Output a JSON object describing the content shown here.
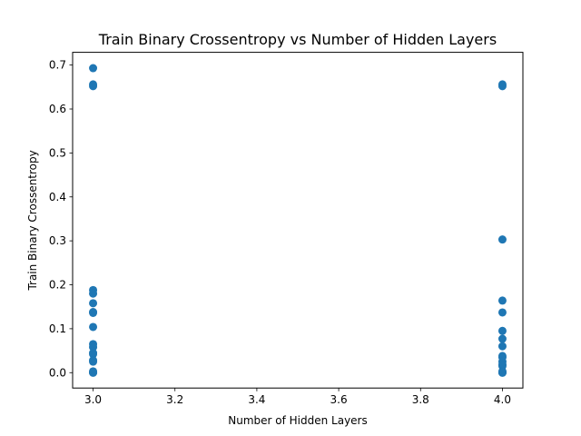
{
  "chart_data": {
    "type": "scatter",
    "title": "Train Binary Crossentropy vs Number of Hidden Layers",
    "xlabel": "Number of Hidden Layers",
    "ylabel": "Train Binary Crossentropy",
    "xlim": [
      2.95,
      4.05
    ],
    "ylim": [
      -0.035,
      0.729
    ],
    "xticks": [
      "3.0",
      "3.2",
      "3.4",
      "3.6",
      "3.8",
      "4.0"
    ],
    "yticks": [
      "0.0",
      "0.1",
      "0.2",
      "0.3",
      "0.4",
      "0.5",
      "0.6",
      "0.7"
    ],
    "grid": false,
    "marker_color": "#1f77b4",
    "series": [
      {
        "x": [
          3,
          3,
          3,
          3,
          3,
          3,
          3,
          3,
          3,
          3,
          3,
          3,
          3,
          3,
          3,
          3,
          3,
          3,
          3,
          4,
          4,
          4,
          4,
          4,
          4,
          4,
          4,
          4,
          4,
          4,
          4,
          4,
          4,
          4,
          4,
          4
        ],
        "y": [
          0.693,
          0.656,
          0.652,
          0.188,
          0.18,
          0.158,
          0.138,
          0.136,
          0.104,
          0.065,
          0.058,
          0.045,
          0.042,
          0.028,
          0.025,
          0.003,
          0.001,
          0.0,
          0.0,
          0.656,
          0.652,
          0.303,
          0.164,
          0.137,
          0.095,
          0.077,
          0.06,
          0.038,
          0.035,
          0.025,
          0.018,
          0.015,
          0.003,
          0.001,
          0.0,
          0.0
        ]
      }
    ]
  }
}
